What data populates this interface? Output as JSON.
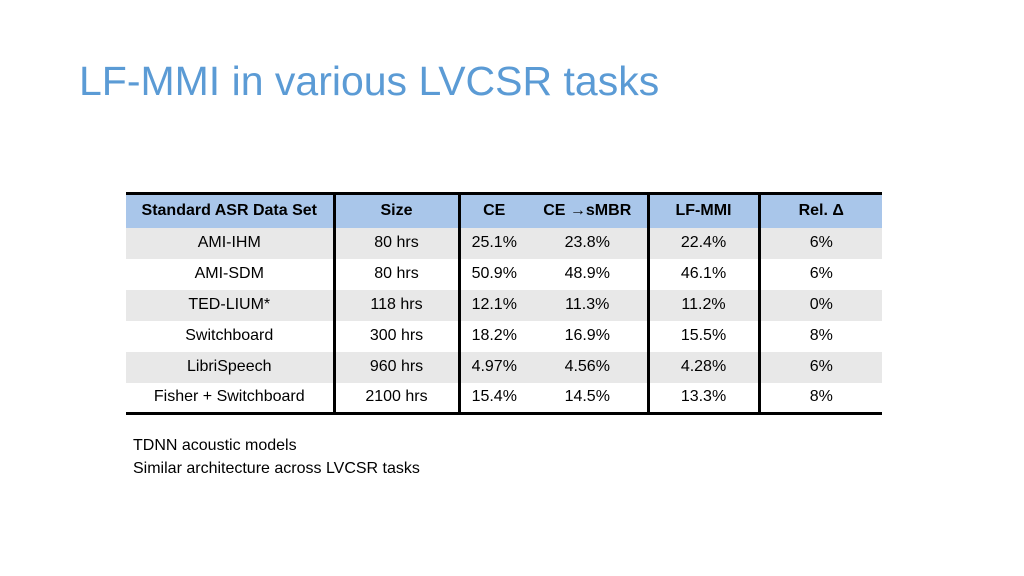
{
  "slide": {
    "title": "LF-MMI in various LVCSR tasks"
  },
  "table": {
    "headers": [
      "Standard ASR Data Set",
      "Size",
      "CE",
      "CE →sMBR",
      "LF-MMI",
      "Rel. Δ"
    ],
    "rows": [
      [
        "AMI-IHM",
        "80 hrs",
        "25.1%",
        "23.8%",
        "22.4%",
        "6%"
      ],
      [
        "AMI-SDM",
        "80 hrs",
        "50.9%",
        "48.9%",
        "46.1%",
        "6%"
      ],
      [
        "TED-LIUM*",
        "118 hrs",
        "12.1%",
        "11.3%",
        "11.2%",
        "0%"
      ],
      [
        "Switchboard",
        "300 hrs",
        "18.2%",
        "16.9%",
        "15.5%",
        "8%"
      ],
      [
        "LibriSpeech",
        "960 hrs",
        "4.97%",
        "4.56%",
        "4.28%",
        "6%"
      ],
      [
        "Fisher + Switchboard",
        "2100 hrs",
        "15.4%",
        "14.5%",
        "13.3%",
        "8%"
      ]
    ]
  },
  "notes": [
    "TDNN acoustic models",
    "Similar architecture across LVCSR tasks"
  ],
  "colors": {
    "title": "#5b9bd5",
    "header_bg": "#a9c6ea",
    "row_shade": "#e8e8e8",
    "rule": "#000000"
  }
}
